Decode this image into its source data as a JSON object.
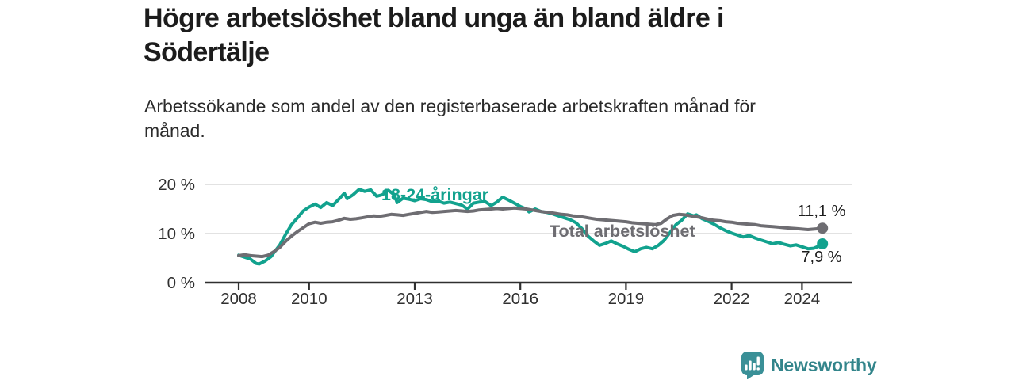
{
  "header": {
    "title": "Högre arbetslöshet bland unga än bland äldre i Södertälje",
    "subtitle": "Arbetssökande som andel av den registerbaserade arbetskraften månad för månad."
  },
  "footer": {
    "logo_text": "Newsworthy"
  },
  "colors": {
    "young_series": "#12a28e",
    "total_series": "#6e6d72",
    "brand_teal": "#33858b",
    "grid": "#d8d8d8",
    "axis": "#2f2f2f",
    "text": "#1d1d1d"
  },
  "chart_data": {
    "type": "line",
    "title": "Högre arbetslöshet bland unga än bland äldre i Södertälje",
    "subtitle": "Arbetssökande som andel av den registerbaserade arbetskraften månad för månad.",
    "unit": "%",
    "xlabel": "",
    "ylabel": "",
    "ylim": [
      0,
      20
    ],
    "xlim": [
      2007.1,
      2025.4
    ],
    "grid": "horizontal",
    "legend_position": "inline-labels",
    "y_ticks": [
      {
        "value": 0,
        "label": "0 %"
      },
      {
        "value": 10,
        "label": "10 %"
      },
      {
        "value": 20,
        "label": "20 %"
      }
    ],
    "x_ticks": [
      {
        "value": 2008,
        "label": "2008"
      },
      {
        "value": 2010,
        "label": "2010"
      },
      {
        "value": 2013,
        "label": "2013"
      },
      {
        "value": 2016,
        "label": "2016"
      },
      {
        "value": 2019,
        "label": "2019"
      },
      {
        "value": 2022,
        "label": "2022"
      },
      {
        "value": 2024,
        "label": "2024"
      }
    ],
    "series": [
      {
        "name": "18-24-åringar",
        "color": "#12a28e",
        "end_label": "7,9 %",
        "end_value": 7.9,
        "points": [
          [
            2008.0,
            5.6
          ],
          [
            2008.17,
            5.2
          ],
          [
            2008.33,
            4.8
          ],
          [
            2008.5,
            3.9
          ],
          [
            2008.58,
            3.8
          ],
          [
            2008.75,
            4.4
          ],
          [
            2008.92,
            5.3
          ],
          [
            2009.0,
            6.1
          ],
          [
            2009.17,
            7.7
          ],
          [
            2009.33,
            9.8
          ],
          [
            2009.5,
            11.8
          ],
          [
            2009.67,
            13.2
          ],
          [
            2009.83,
            14.6
          ],
          [
            2010.0,
            15.4
          ],
          [
            2010.17,
            16.0
          ],
          [
            2010.33,
            15.3
          ],
          [
            2010.5,
            16.3
          ],
          [
            2010.67,
            15.7
          ],
          [
            2010.83,
            16.9
          ],
          [
            2011.0,
            18.2
          ],
          [
            2011.08,
            17.1
          ],
          [
            2011.25,
            17.9
          ],
          [
            2011.42,
            19.0
          ],
          [
            2011.58,
            18.6
          ],
          [
            2011.75,
            18.9
          ],
          [
            2011.92,
            17.6
          ],
          [
            2012.08,
            17.9
          ],
          [
            2012.25,
            18.8
          ],
          [
            2012.42,
            17.9
          ],
          [
            2012.5,
            16.3
          ],
          [
            2012.67,
            17.2
          ],
          [
            2012.83,
            17.0
          ],
          [
            2013.0,
            16.7
          ],
          [
            2013.17,
            17.1
          ],
          [
            2013.33,
            16.9
          ],
          [
            2013.5,
            16.5
          ],
          [
            2013.67,
            16.6
          ],
          [
            2013.83,
            16.2
          ],
          [
            2014.0,
            16.4
          ],
          [
            2014.17,
            16.1
          ],
          [
            2014.33,
            15.8
          ],
          [
            2014.5,
            15.0
          ],
          [
            2014.67,
            16.2
          ],
          [
            2014.83,
            16.4
          ],
          [
            2015.0,
            16.5
          ],
          [
            2015.17,
            15.7
          ],
          [
            2015.33,
            16.4
          ],
          [
            2015.5,
            17.4
          ],
          [
            2015.67,
            16.8
          ],
          [
            2015.83,
            16.2
          ],
          [
            2016.0,
            15.5
          ],
          [
            2016.17,
            15.0
          ],
          [
            2016.25,
            14.4
          ],
          [
            2016.42,
            15.0
          ],
          [
            2016.58,
            14.5
          ],
          [
            2016.75,
            14.3
          ],
          [
            2016.92,
            14.0
          ],
          [
            2017.08,
            13.6
          ],
          [
            2017.25,
            13.2
          ],
          [
            2017.42,
            12.8
          ],
          [
            2017.58,
            12.2
          ],
          [
            2017.75,
            11.0
          ],
          [
            2017.92,
            9.5
          ],
          [
            2018.08,
            8.5
          ],
          [
            2018.25,
            7.6
          ],
          [
            2018.42,
            8.0
          ],
          [
            2018.58,
            8.5
          ],
          [
            2018.75,
            7.9
          ],
          [
            2018.92,
            7.4
          ],
          [
            2019.08,
            6.8
          ],
          [
            2019.25,
            6.3
          ],
          [
            2019.42,
            6.9
          ],
          [
            2019.58,
            7.2
          ],
          [
            2019.75,
            6.9
          ],
          [
            2019.92,
            7.6
          ],
          [
            2020.08,
            8.6
          ],
          [
            2020.25,
            10.2
          ],
          [
            2020.42,
            11.8
          ],
          [
            2020.58,
            12.7
          ],
          [
            2020.75,
            14.0
          ],
          [
            2020.92,
            13.6
          ],
          [
            2021.0,
            13.8
          ],
          [
            2021.17,
            13.0
          ],
          [
            2021.33,
            12.5
          ],
          [
            2021.5,
            11.9
          ],
          [
            2021.67,
            11.2
          ],
          [
            2021.83,
            10.6
          ],
          [
            2022.0,
            10.1
          ],
          [
            2022.17,
            9.7
          ],
          [
            2022.33,
            9.3
          ],
          [
            2022.5,
            9.6
          ],
          [
            2022.67,
            9.1
          ],
          [
            2022.83,
            8.7
          ],
          [
            2023.0,
            8.3
          ],
          [
            2023.17,
            7.9
          ],
          [
            2023.33,
            8.2
          ],
          [
            2023.5,
            7.8
          ],
          [
            2023.67,
            7.5
          ],
          [
            2023.83,
            7.7
          ],
          [
            2024.0,
            7.3
          ],
          [
            2024.17,
            6.9
          ],
          [
            2024.33,
            7.0
          ],
          [
            2024.5,
            7.5
          ],
          [
            2024.58,
            7.9
          ]
        ]
      },
      {
        "name": "Total arbetslöshet",
        "color": "#6e6d72",
        "end_label": "11,1 %",
        "end_value": 11.1,
        "points": [
          [
            2008.0,
            5.5
          ],
          [
            2008.17,
            5.7
          ],
          [
            2008.33,
            5.5
          ],
          [
            2008.5,
            5.4
          ],
          [
            2008.67,
            5.3
          ],
          [
            2008.83,
            5.6
          ],
          [
            2009.0,
            6.3
          ],
          [
            2009.17,
            7.2
          ],
          [
            2009.33,
            8.4
          ],
          [
            2009.5,
            9.5
          ],
          [
            2009.67,
            10.4
          ],
          [
            2009.83,
            11.2
          ],
          [
            2010.0,
            12.0
          ],
          [
            2010.17,
            12.3
          ],
          [
            2010.33,
            12.1
          ],
          [
            2010.5,
            12.3
          ],
          [
            2010.67,
            12.4
          ],
          [
            2010.83,
            12.7
          ],
          [
            2011.0,
            13.1
          ],
          [
            2011.17,
            12.9
          ],
          [
            2011.33,
            13.0
          ],
          [
            2011.5,
            13.2
          ],
          [
            2011.67,
            13.4
          ],
          [
            2011.83,
            13.6
          ],
          [
            2012.0,
            13.5
          ],
          [
            2012.17,
            13.7
          ],
          [
            2012.33,
            13.9
          ],
          [
            2012.5,
            13.8
          ],
          [
            2012.67,
            13.7
          ],
          [
            2012.83,
            13.9
          ],
          [
            2013.0,
            14.1
          ],
          [
            2013.17,
            14.3
          ],
          [
            2013.33,
            14.5
          ],
          [
            2013.5,
            14.3
          ],
          [
            2013.67,
            14.4
          ],
          [
            2013.83,
            14.5
          ],
          [
            2014.0,
            14.6
          ],
          [
            2014.17,
            14.7
          ],
          [
            2014.33,
            14.6
          ],
          [
            2014.5,
            14.5
          ],
          [
            2014.67,
            14.6
          ],
          [
            2014.83,
            14.8
          ],
          [
            2015.0,
            14.9
          ],
          [
            2015.17,
            15.0
          ],
          [
            2015.33,
            15.1
          ],
          [
            2015.5,
            15.0
          ],
          [
            2015.67,
            15.1
          ],
          [
            2015.83,
            15.2
          ],
          [
            2016.0,
            15.1
          ],
          [
            2016.17,
            15.0
          ],
          [
            2016.33,
            14.8
          ],
          [
            2016.5,
            14.6
          ],
          [
            2016.67,
            14.4
          ],
          [
            2016.83,
            14.3
          ],
          [
            2017.0,
            14.1
          ],
          [
            2017.17,
            13.9
          ],
          [
            2017.33,
            13.8
          ],
          [
            2017.5,
            13.6
          ],
          [
            2017.67,
            13.5
          ],
          [
            2017.83,
            13.3
          ],
          [
            2018.0,
            13.1
          ],
          [
            2018.17,
            12.9
          ],
          [
            2018.33,
            12.8
          ],
          [
            2018.5,
            12.7
          ],
          [
            2018.67,
            12.6
          ],
          [
            2018.83,
            12.5
          ],
          [
            2019.0,
            12.4
          ],
          [
            2019.17,
            12.2
          ],
          [
            2019.33,
            12.1
          ],
          [
            2019.5,
            12.0
          ],
          [
            2019.67,
            11.9
          ],
          [
            2019.83,
            11.8
          ],
          [
            2020.0,
            12.1
          ],
          [
            2020.17,
            13.0
          ],
          [
            2020.33,
            13.7
          ],
          [
            2020.5,
            13.9
          ],
          [
            2020.67,
            13.8
          ],
          [
            2020.83,
            13.6
          ],
          [
            2021.0,
            13.4
          ],
          [
            2021.17,
            13.2
          ],
          [
            2021.33,
            12.9
          ],
          [
            2021.5,
            12.7
          ],
          [
            2021.67,
            12.6
          ],
          [
            2021.83,
            12.4
          ],
          [
            2022.0,
            12.3
          ],
          [
            2022.17,
            12.1
          ],
          [
            2022.33,
            12.0
          ],
          [
            2022.5,
            11.9
          ],
          [
            2022.67,
            11.8
          ],
          [
            2022.83,
            11.6
          ],
          [
            2023.0,
            11.5
          ],
          [
            2023.17,
            11.4
          ],
          [
            2023.33,
            11.3
          ],
          [
            2023.5,
            11.2
          ],
          [
            2023.67,
            11.1
          ],
          [
            2023.83,
            11.0
          ],
          [
            2024.0,
            10.9
          ],
          [
            2024.17,
            10.8
          ],
          [
            2024.33,
            10.9
          ],
          [
            2024.5,
            11.0
          ],
          [
            2024.58,
            11.1
          ]
        ]
      }
    ]
  }
}
